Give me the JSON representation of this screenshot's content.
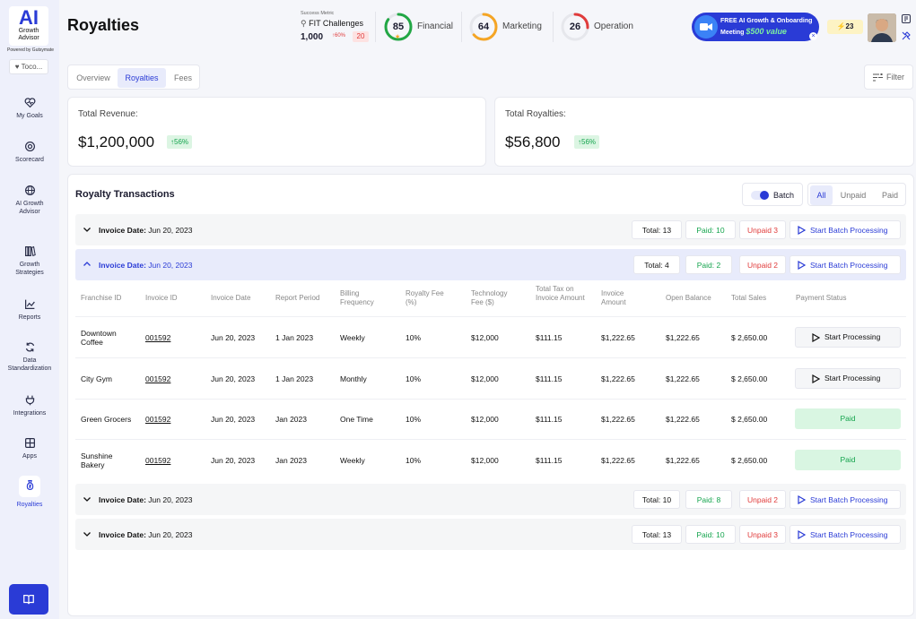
{
  "app": {
    "logo_text": "AI",
    "logo_sub": "Growth Advisor",
    "powered_by": "Powered by Gutsymate",
    "tenant": "Toco..."
  },
  "sidebar": {
    "items": [
      {
        "label": "My Goals"
      },
      {
        "label": "Scorecard"
      },
      {
        "label": "AI Growth Advisor"
      },
      {
        "label": "Growth Strategies"
      },
      {
        "label": "Reports"
      },
      {
        "label": "Data Standardization"
      },
      {
        "label": "Integrations"
      },
      {
        "label": "Apps"
      },
      {
        "label": "Royalties"
      }
    ]
  },
  "header": {
    "title": "Royalties",
    "success_metric_label": "Success Metric",
    "success_metric_name": "FIT Challenges",
    "success_metric_value": "1,000",
    "success_metric_pct": "↑60%",
    "success_metric_badge": "20",
    "scores": [
      {
        "value": "85",
        "label": "Financial",
        "color": "#22a745",
        "fraction": 0.85
      },
      {
        "value": "64",
        "label": "Marketing",
        "color": "#f5a524",
        "fraction": 0.64
      },
      {
        "value": "26",
        "label": "Operation",
        "color": "#e03b3b",
        "fraction": 0.26
      }
    ],
    "promo_line1": "FREE AI Growth & Onboarding",
    "promo_line2": "Meeting",
    "promo_value": "$500 value",
    "promo_close": "×",
    "bolt_count": "23"
  },
  "tabs": [
    "Overview",
    "Royalties",
    "Fees"
  ],
  "filter_label": "Filter",
  "cards": [
    {
      "label": "Total Revenue:",
      "value": "$1,200,000",
      "change": "56%"
    },
    {
      "label": "Total Royalties:",
      "value": "$56,800",
      "change": "56%"
    }
  ],
  "transactions": {
    "title": "Royalty Transactions",
    "batch_label": "Batch",
    "filters": [
      "All",
      "Unpaid",
      "Paid"
    ],
    "groups": [
      {
        "label": "Invoice Date:",
        "date": "Jun 20, 2023",
        "total": "Total: 13",
        "paid": "Paid: 10",
        "unpaid": "Unpaid 3",
        "action": "Start Batch Processing"
      },
      {
        "label": "Invoice Date:",
        "date": "Jun 20, 2023",
        "total": "Total: 4",
        "paid": "Paid: 2",
        "unpaid": "Unpaid 2",
        "action": "Start Batch Processing"
      },
      {
        "label": "Invoice Date:",
        "date": "Jun 20, 2023",
        "total": "Total: 10",
        "paid": "Paid: 8",
        "unpaid": "Unpaid 2",
        "action": "Start Batch Processing"
      },
      {
        "label": "Invoice Date:",
        "date": "Jun 20, 2023",
        "total": "Total: 13",
        "paid": "Paid: 10",
        "unpaid": "Unpaid 3",
        "action": "Start Batch Processing"
      }
    ],
    "columns": [
      "Franchise ID",
      "Invoice ID",
      "Invoice Date",
      "Report Period",
      "Billing Frequency",
      "Royalty Fee (%)",
      "Technology Fee ($)",
      "Total Tax on Invoice Amount",
      "Invoice Amount",
      "Open Balance",
      "Total Sales",
      "Payment Status"
    ],
    "rows": [
      {
        "franchise": "Downtown Coffee",
        "invoice_id": "001592",
        "invoice_date": "Jun 20, 2023",
        "period": "1 Jan 2023",
        "frequency": "Weekly",
        "royalty": "10%",
        "tech": "$12,000",
        "tax": "$111.15",
        "amount": "$1,222.65",
        "balance": "$1,222.65",
        "sales": "$ 2,650.00",
        "status": "Start Processing"
      },
      {
        "franchise": "City Gym",
        "invoice_id": "001592",
        "invoice_date": "Jun 20, 2023",
        "period": "1 Jan 2023",
        "frequency": "Monthly",
        "royalty": "10%",
        "tech": "$12,000",
        "tax": "$111.15",
        "amount": "$1,222.65",
        "balance": "$1,222.65",
        "sales": "$ 2,650.00",
        "status": "Start Processing"
      },
      {
        "franchise": "Green Grocers",
        "invoice_id": "001592",
        "invoice_date": "Jun 20, 2023",
        "period": "Jan 2023",
        "frequency": "One Time",
        "royalty": "10%",
        "tech": "$12,000",
        "tax": "$111.15",
        "amount": "$1,222.65",
        "balance": "$1,222.65",
        "sales": "$ 2,650.00",
        "status": "Paid"
      },
      {
        "franchise": "Sunshine Bakery",
        "invoice_id": "001592",
        "invoice_date": "Jun 20, 2023",
        "period": "Jan 2023",
        "frequency": "Weekly",
        "royalty": "10%",
        "tech": "$12,000",
        "tax": "$111.15",
        "amount": "$1,222.65",
        "balance": "$1,222.65",
        "sales": "$ 2,650.00",
        "status": "Paid"
      }
    ]
  },
  "colors": {
    "accent": "#2a3bd6",
    "paid": "#14a44d",
    "unpaid": "#e03b3b"
  }
}
